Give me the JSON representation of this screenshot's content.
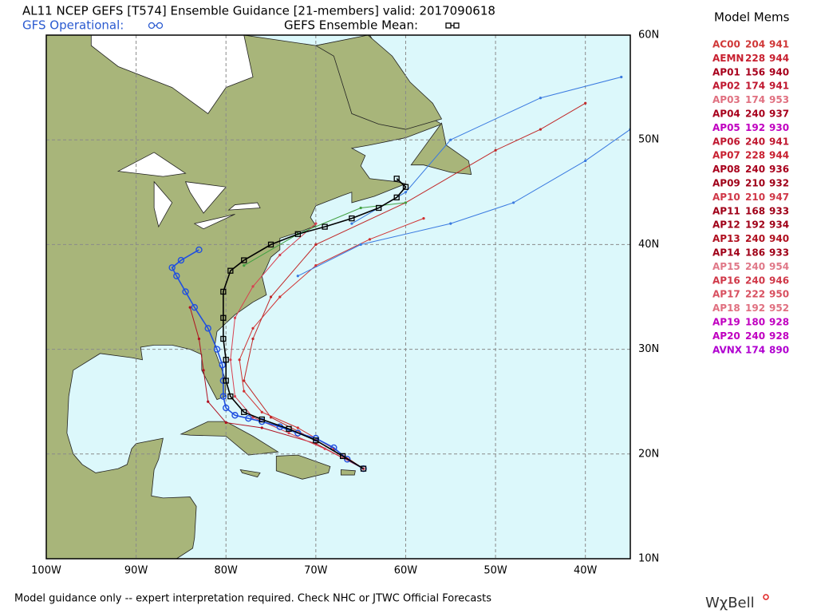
{
  "header": {
    "title": "AL11 NCEP GEFS [T574] Ensemble Guidance [21-members] valid: 2017090618",
    "gfs_label": "GFS Operational:",
    "mean_label": "GEFS Ensemble Mean:"
  },
  "map": {
    "lon_ticks": [
      {
        "value": -100,
        "label": "100W"
      },
      {
        "value": -90,
        "label": "90W"
      },
      {
        "value": -80,
        "label": "80W"
      },
      {
        "value": -70,
        "label": "70W"
      },
      {
        "value": -60,
        "label": "60W"
      },
      {
        "value": -50,
        "label": "50W"
      },
      {
        "value": -40,
        "label": "40W"
      }
    ],
    "lat_ticks": [
      {
        "value": 60,
        "label": "60N"
      },
      {
        "value": 50,
        "label": "50N"
      },
      {
        "value": 40,
        "label": "40N"
      },
      {
        "value": 30,
        "label": "30N"
      },
      {
        "value": 20,
        "label": "20N"
      },
      {
        "value": 10,
        "label": "10N"
      }
    ],
    "lon_range": [
      -100,
      -35
    ],
    "lat_range": [
      10,
      60
    ],
    "tracks": [
      {
        "color": "#d03030",
        "marker": "dot",
        "lon": [
          -64.7,
          -68,
          -72,
          -76,
          -78,
          -78.5,
          -77,
          -74,
          -70,
          -64,
          -58
        ],
        "lat": [
          18.6,
          20.5,
          22.5,
          24,
          26,
          29,
          32,
          35,
          38,
          40.5,
          42.5
        ]
      },
      {
        "color": "#b01020",
        "marker": "dot",
        "lon": [
          -64.7,
          -70,
          -76,
          -80,
          -82,
          -82.5,
          -83,
          -84
        ],
        "lat": [
          18.6,
          21,
          22.5,
          23,
          25,
          28,
          31,
          34
        ]
      },
      {
        "color": "#c02828",
        "marker": "dot",
        "lon": [
          -64.7,
          -70,
          -75,
          -78,
          -77,
          -75,
          -70,
          -60,
          -50,
          -45,
          -40
        ],
        "lat": [
          18.6,
          21.3,
          23.5,
          27,
          31,
          35,
          40,
          44,
          49,
          51,
          53.5
        ]
      },
      {
        "color": "#d84050",
        "marker": "dot",
        "lon": [
          -64.7,
          -69,
          -73,
          -77,
          -79,
          -79.5,
          -79,
          -77,
          -74,
          -70
        ],
        "lat": [
          18.6,
          20.5,
          22,
          23.5,
          25.5,
          29,
          33,
          36,
          39,
          42
        ]
      },
      {
        "color": "#3a7ae0",
        "marker": "dot",
        "lon": [
          -66,
          -60,
          -55,
          -45,
          -36
        ],
        "lat": [
          42,
          45,
          50,
          54,
          56
        ]
      },
      {
        "color": "#3a7ae0",
        "marker": "dot",
        "lon": [
          -72,
          -65,
          -55,
          -48,
          -40,
          -35
        ],
        "lat": [
          37,
          40,
          42,
          44,
          48,
          51
        ]
      },
      {
        "color": "#40a040",
        "marker": "dot",
        "lon": [
          -78,
          -72,
          -65,
          -60
        ],
        "lat": [
          38,
          41,
          43.5,
          44
        ]
      },
      {
        "color": "#2050e0",
        "marker": "circle",
        "lon": [
          -64.7,
          -66.5,
          -68,
          -70,
          -72,
          -74,
          -76,
          -77.5,
          -79,
          -80,
          -80.3,
          -80.3,
          -80.4,
          -81,
          -82,
          -83.5,
          -84.5,
          -85.5,
          -86,
          -85,
          -83
        ],
        "lat": [
          18.6,
          19.5,
          20.6,
          21.5,
          22,
          22.6,
          23.1,
          23.4,
          23.7,
          24.4,
          25.5,
          27,
          28.5,
          30,
          32,
          34,
          35.5,
          37,
          37.8,
          38.5,
          39.5
        ]
      },
      {
        "color": "#000000",
        "marker": "square",
        "lon": [
          -64.7,
          -67,
          -70,
          -73,
          -76,
          -78,
          -79.5,
          -80,
          -80,
          -80.3,
          -80.3,
          -80.3,
          -79.5,
          -78,
          -75,
          -72,
          -69,
          -66,
          -63,
          -61,
          -60,
          -61
        ],
        "lat": [
          18.6,
          19.8,
          21.3,
          22.4,
          23.3,
          24,
          25.5,
          27,
          29,
          31,
          33,
          35.5,
          37.5,
          38.5,
          40,
          41,
          41.7,
          42.5,
          43.5,
          44.5,
          45.5,
          46.3
        ]
      }
    ]
  },
  "members": {
    "title": "Model Mems",
    "rows": [
      {
        "name": "AC00",
        "hour": "204",
        "pressure": "941",
        "color": "#d03838"
      },
      {
        "name": "AEMN",
        "hour": "228",
        "pressure": "944",
        "color": "#c82030"
      },
      {
        "name": "AP01",
        "hour": "156",
        "pressure": "940",
        "color": "#a8001c"
      },
      {
        "name": "AP02",
        "hour": "174",
        "pressure": "941",
        "color": "#c01830"
      },
      {
        "name": "AP03",
        "hour": "174",
        "pressure": "953",
        "color": "#e07080"
      },
      {
        "name": "AP04",
        "hour": "240",
        "pressure": "937",
        "color": "#a8001c"
      },
      {
        "name": "AP05",
        "hour": "192",
        "pressure": "930",
        "color": "#c000c0"
      },
      {
        "name": "AP06",
        "hour": "240",
        "pressure": "941",
        "color": "#c01830"
      },
      {
        "name": "AP07",
        "hour": "228",
        "pressure": "944",
        "color": "#c82030"
      },
      {
        "name": "AP08",
        "hour": "240",
        "pressure": "936",
        "color": "#a8001c"
      },
      {
        "name": "AP09",
        "hour": "210",
        "pressure": "932",
        "color": "#a00018"
      },
      {
        "name": "AP10",
        "hour": "210",
        "pressure": "947",
        "color": "#d03848"
      },
      {
        "name": "AP11",
        "hour": "168",
        "pressure": "933",
        "color": "#a00018"
      },
      {
        "name": "AP12",
        "hour": "192",
        "pressure": "934",
        "color": "#a00018"
      },
      {
        "name": "AP13",
        "hour": "240",
        "pressure": "940",
        "color": "#b01020"
      },
      {
        "name": "AP14",
        "hour": "186",
        "pressure": "933",
        "color": "#a00018"
      },
      {
        "name": "AP15",
        "hour": "240",
        "pressure": "954",
        "color": "#e07888"
      },
      {
        "name": "AP16",
        "hour": "240",
        "pressure": "946",
        "color": "#d03848"
      },
      {
        "name": "AP17",
        "hour": "222",
        "pressure": "950",
        "color": "#d85060"
      },
      {
        "name": "AP18",
        "hour": "192",
        "pressure": "952",
        "color": "#e07080"
      },
      {
        "name": "AP19",
        "hour": "180",
        "pressure": "928",
        "color": "#c000c0"
      },
      {
        "name": "AP20",
        "hour": "240",
        "pressure": "928",
        "color": "#c000c0"
      },
      {
        "name": "AVNX",
        "hour": "174",
        "pressure": "890",
        "color": "#b000d0"
      }
    ]
  },
  "footer": {
    "disclaimer": "Model guidance only -- expert interpretation required.  Check NHC or JTWC Official Forecasts",
    "logo": "WχBell"
  }
}
